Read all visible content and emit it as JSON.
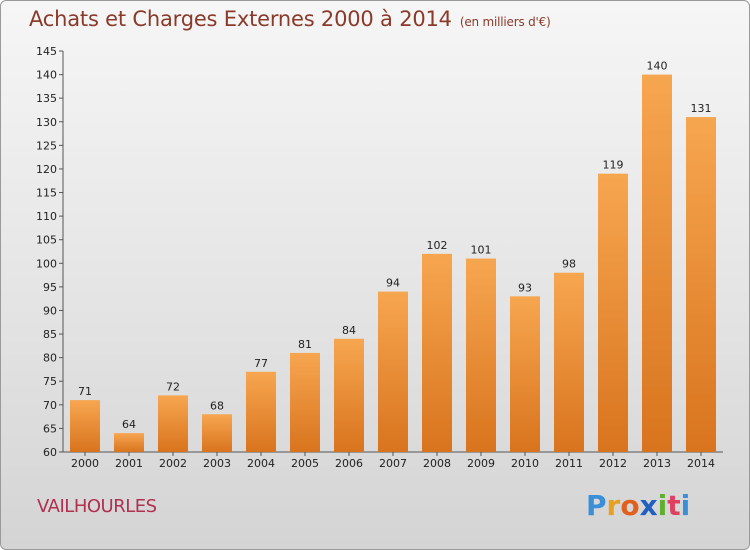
{
  "chart_data": {
    "type": "bar",
    "title": "Achats et Charges Externes 2000 à 2014",
    "subtitle": "(en milliers d'€)",
    "categories": [
      "2000",
      "2001",
      "2002",
      "2003",
      "2004",
      "2005",
      "2006",
      "2007",
      "2008",
      "2009",
      "2010",
      "2011",
      "2012",
      "2013",
      "2014"
    ],
    "values": [
      71,
      64,
      72,
      68,
      77,
      81,
      84,
      94,
      102,
      101,
      93,
      98,
      119,
      140,
      131
    ],
    "ylim": [
      60,
      145
    ],
    "yticks": [
      60,
      65,
      70,
      75,
      80,
      85,
      90,
      95,
      100,
      105,
      110,
      115,
      120,
      125,
      130,
      135,
      140,
      145
    ],
    "grid": false,
    "bar_color_top": "#f7a650",
    "bar_color_bottom": "#d9741e"
  },
  "footer": {
    "commune": "VAILHOURLES",
    "logo_letters": [
      "P",
      "r",
      "o",
      "x",
      "i",
      "t",
      "i"
    ],
    "logo_colors": [
      "#3a8fd8",
      "#e8a020",
      "#e06020",
      "#2060c0",
      "#60b030",
      "#e04060",
      "#3a8fd8"
    ]
  }
}
